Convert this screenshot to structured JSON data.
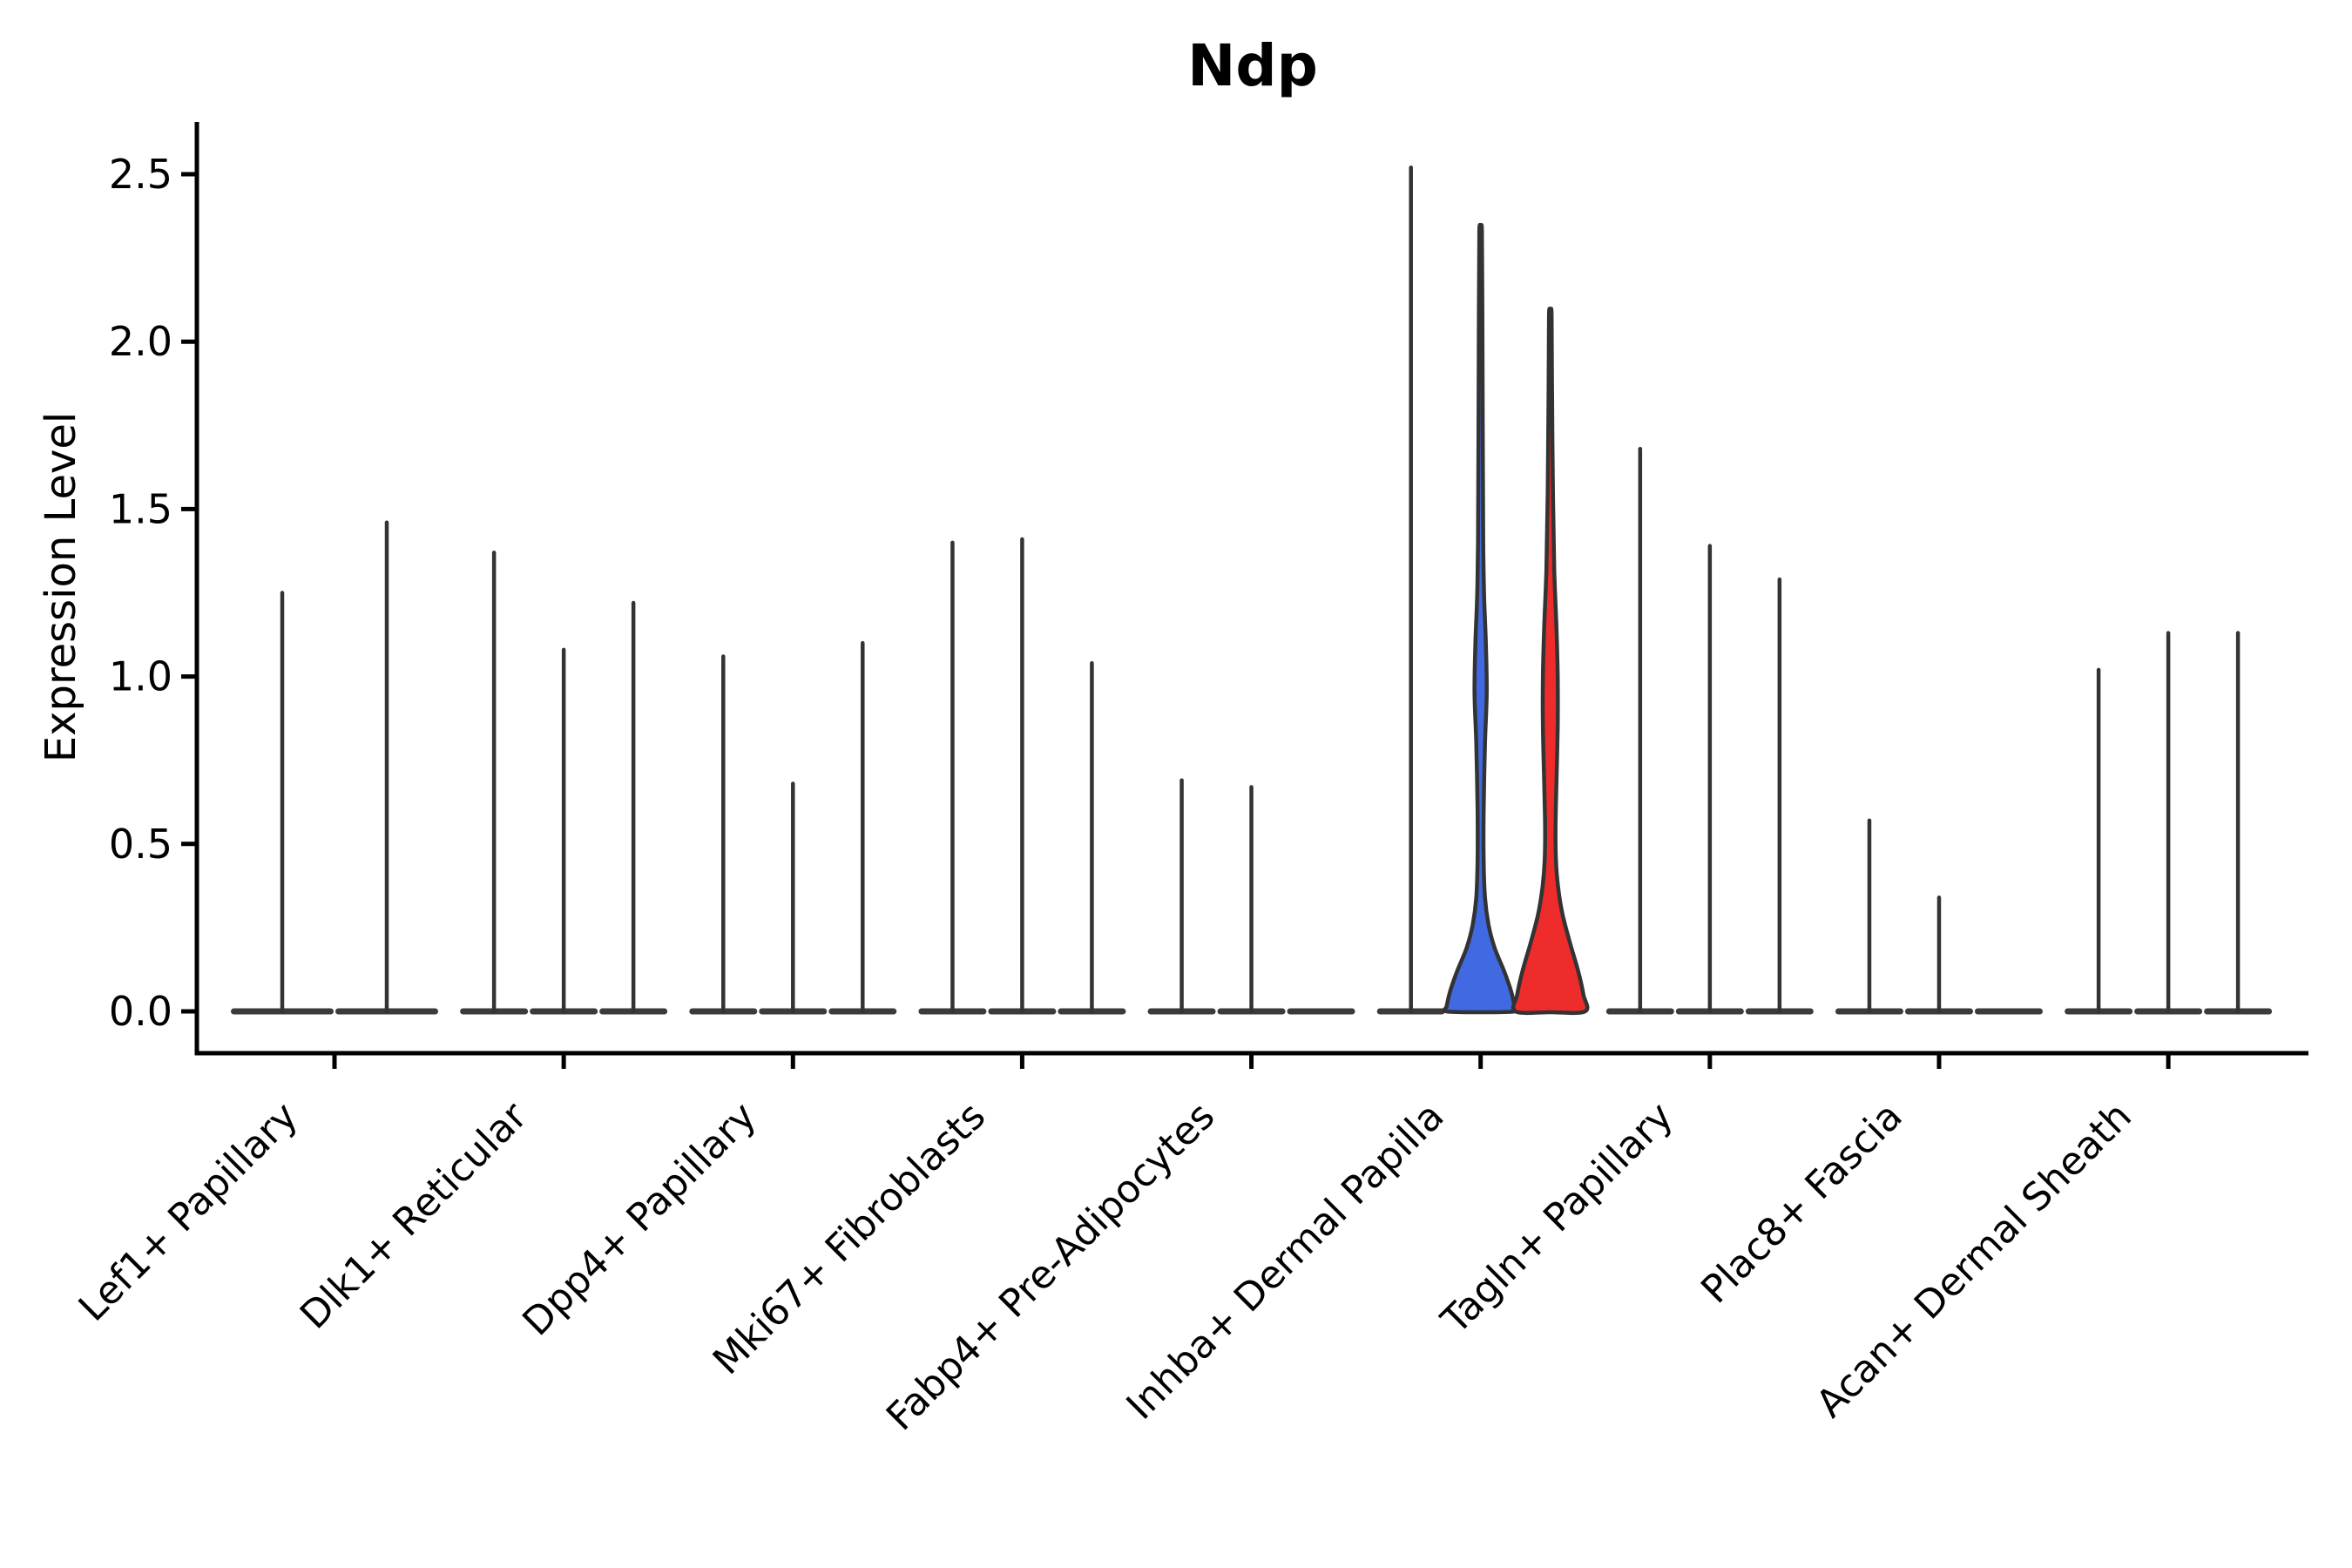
{
  "chart_data": {
    "type": "violin",
    "title": "Ndp",
    "ylabel": "Expression Level",
    "xlabel": "",
    "ylim": [
      0,
      2.66
    ],
    "yticks": [
      0.0,
      0.5,
      1.0,
      1.5,
      2.0,
      2.5
    ],
    "ytick_labels": [
      "0.0",
      "0.5",
      "1.0",
      "1.5",
      "2.0",
      "2.5"
    ],
    "grid": false,
    "legend": "none",
    "categories": [
      "Lef1+ Papillary",
      "Dlk1+ Reticular",
      "Dpp4+ Papillary",
      "Mki67+ Fibroblasts",
      "Fabp4+ Pre-Adipocytes",
      "Inhba+ Dermal Papilla",
      "Tagln+ Papillary",
      "Plac8+ Fascia",
      "Acan+ Dermal Sheath"
    ],
    "colors": {
      "violin_outline": "#333333",
      "baseline_bar": "#3b3b3b",
      "axis": "#000000",
      "blue_fill": "#4169E1",
      "red_fill": "#EE2C2C"
    },
    "groups": [
      {
        "category": "Lef1+ Papillary",
        "violins": [
          {
            "max": 1.25,
            "style": "line"
          },
          {
            "max": 1.46,
            "style": "line"
          }
        ]
      },
      {
        "category": "Dlk1+ Reticular",
        "violins": [
          {
            "max": 1.37,
            "style": "line"
          },
          {
            "max": 1.08,
            "style": "line"
          },
          {
            "max": 1.22,
            "style": "line"
          }
        ]
      },
      {
        "category": "Dpp4+ Papillary",
        "violins": [
          {
            "max": 1.06,
            "style": "line"
          },
          {
            "max": 0.68,
            "style": "line"
          },
          {
            "max": 1.1,
            "style": "line"
          }
        ]
      },
      {
        "category": "Mki67+ Fibroblasts",
        "violins": [
          {
            "max": 1.4,
            "style": "line"
          },
          {
            "max": 1.41,
            "style": "line"
          },
          {
            "max": 1.04,
            "style": "line"
          }
        ]
      },
      {
        "category": "Fabp4+ Pre-Adipocytes",
        "violins": [
          {
            "max": 0.69,
            "style": "line"
          },
          {
            "max": 0.67,
            "style": "line"
          },
          {
            "max": 0.0,
            "style": "flat"
          }
        ]
      },
      {
        "category": "Inhba+ Dermal Papilla",
        "violins": [
          {
            "max": 2.52,
            "style": "line"
          },
          {
            "max": 2.33,
            "style": "filled",
            "fill": "#4169E1",
            "profile": [
              [
                2.33,
                1.5
              ],
              [
                2.1,
                2
              ],
              [
                1.7,
                2.5
              ],
              [
                1.4,
                3
              ],
              [
                1.24,
                4
              ],
              [
                1.1,
                6
              ],
              [
                0.95,
                7
              ],
              [
                0.8,
                5
              ],
              [
                0.6,
                3.5
              ],
              [
                0.45,
                3.5
              ],
              [
                0.34,
                5
              ],
              [
                0.26,
                9
              ],
              [
                0.19,
                16
              ],
              [
                0.12,
                27
              ],
              [
                0.06,
                35
              ],
              [
                0.015,
                39
              ],
              [
                0,
                39.5
              ]
            ]
          },
          {
            "max": 2.08,
            "style": "filled",
            "fill": "#EE2C2C",
            "profile": [
              [
                2.08,
                1.5
              ],
              [
                1.85,
                2
              ],
              [
                1.55,
                3
              ],
              [
                1.32,
                4.5
              ],
              [
                1.15,
                7
              ],
              [
                1.0,
                8.5
              ],
              [
                0.85,
                8.5
              ],
              [
                0.68,
                7
              ],
              [
                0.55,
                6
              ],
              [
                0.45,
                6.5
              ],
              [
                0.37,
                9
              ],
              [
                0.29,
                14
              ],
              [
                0.21,
                22
              ],
              [
                0.12,
                32
              ],
              [
                0.05,
                38
              ],
              [
                0,
                40
              ]
            ]
          }
        ]
      },
      {
        "category": "Tagln+ Papillary",
        "violins": [
          {
            "max": 1.68,
            "style": "line"
          },
          {
            "max": 1.39,
            "style": "line"
          },
          {
            "max": 1.29,
            "style": "line"
          }
        ]
      },
      {
        "category": "Plac8+ Fascia",
        "violins": [
          {
            "max": 0.57,
            "style": "line"
          },
          {
            "max": 0.34,
            "style": "line"
          },
          {
            "max": 0.0,
            "style": "flat"
          }
        ]
      },
      {
        "category": "Acan+ Dermal Sheath",
        "violins": [
          {
            "max": 1.02,
            "style": "line"
          },
          {
            "max": 1.13,
            "style": "line"
          },
          {
            "max": 1.13,
            "style": "line"
          }
        ]
      }
    ]
  }
}
